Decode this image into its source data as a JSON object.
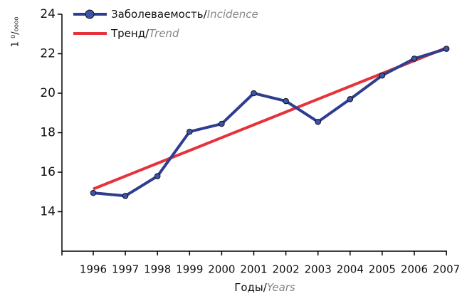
{
  "chart_data": {
    "type": "line",
    "categories": [
      "1996",
      "1997",
      "1998",
      "1999",
      "2000",
      "2001",
      "2002",
      "2003",
      "2004",
      "2005",
      "2006",
      "2007"
    ],
    "series": [
      {
        "name": "Заболеваемость/Incidence",
        "color": "#2f3d91",
        "marker": true,
        "values": [
          14.95,
          14.8,
          15.8,
          18.05,
          18.45,
          20.0,
          19.6,
          18.55,
          19.7,
          20.9,
          21.75,
          22.25
        ]
      },
      {
        "name": "Тренд/Trend",
        "color": "#e5323b",
        "marker": false,
        "values": [
          15.15,
          15.8,
          16.45,
          17.1,
          17.75,
          18.4,
          19.05,
          19.7,
          20.35,
          21.0,
          21.65,
          22.3
        ]
      }
    ],
    "xlabel": "Годы/Years",
    "ylabel": "1 ⁰/₀₀₀₀",
    "ylim": [
      12,
      24
    ],
    "yticks": [
      14,
      16,
      18,
      20,
      22,
      24
    ]
  }
}
